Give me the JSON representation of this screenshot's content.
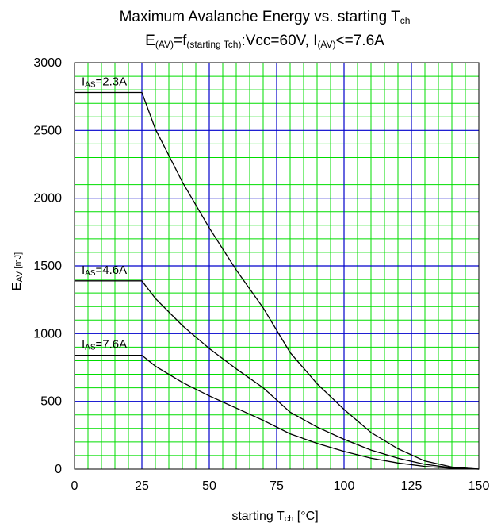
{
  "chart_data": {
    "type": "line",
    "title": {
      "line1_main": "Maximum Avalanche Energy vs. starting T",
      "line1_sub": "ch",
      "line2_a": "E",
      "line2_a_sub": "(AV)",
      "line2_b": "=f",
      "line2_b_sub": "(starting Tch)",
      "line2_c": ":Vcc=60V, I",
      "line2_c_sub": "(AV)",
      "line2_d": "<=7.6A"
    },
    "xlabel": {
      "main": "starting T",
      "sub": "ch",
      "unit": " [°C]"
    },
    "ylabel": {
      "main": "E",
      "sub": "AV",
      "unit": " [mJ]"
    },
    "xlim": [
      0,
      150
    ],
    "ylim": [
      0,
      3000
    ],
    "x_ticks": [
      0,
      25,
      50,
      75,
      100,
      125,
      150
    ],
    "y_ticks": [
      0,
      500,
      1000,
      1500,
      2000,
      2500,
      3000
    ],
    "x_minor_step": 5,
    "y_minor_step": 100,
    "grid": true,
    "colors": {
      "major_grid": "#0000cc",
      "minor_grid": "#00dd00",
      "line": "#000000",
      "frame": "#000000"
    },
    "series": [
      {
        "name": "2.3A",
        "label_prefix": "I",
        "label_sub": "AS",
        "label_value": "=2.3A",
        "x": [
          0,
          25,
          30,
          40,
          50,
          60,
          70,
          80,
          90,
          100,
          110,
          120,
          130,
          140,
          150
        ],
        "values": [
          2780,
          2780,
          2510,
          2120,
          1780,
          1470,
          1190,
          860,
          630,
          440,
          270,
          150,
          60,
          15,
          0
        ]
      },
      {
        "name": "4.6A",
        "label_prefix": "I",
        "label_sub": "AS",
        "label_value": "=4.6A",
        "x": [
          0,
          25,
          30,
          40,
          50,
          60,
          70,
          80,
          90,
          100,
          110,
          120,
          130,
          140,
          150
        ],
        "values": [
          1390,
          1390,
          1260,
          1060,
          890,
          740,
          600,
          420,
          310,
          220,
          140,
          80,
          35,
          10,
          0
        ]
      },
      {
        "name": "7.6A",
        "label_prefix": "I",
        "label_sub": "AS",
        "label_value": "=7.6A",
        "x": [
          0,
          25,
          30,
          40,
          50,
          60,
          70,
          80,
          90,
          100,
          110,
          120,
          130,
          140,
          150
        ],
        "values": [
          840,
          840,
          760,
          640,
          540,
          450,
          360,
          260,
          190,
          130,
          80,
          45,
          20,
          5,
          0
        ]
      }
    ]
  }
}
